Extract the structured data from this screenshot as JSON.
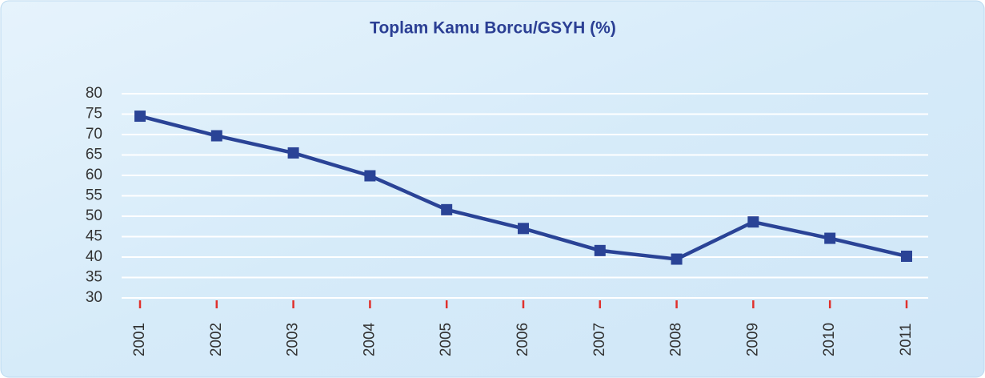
{
  "chart_data": {
    "type": "line",
    "title": "Toplam Kamu Borcu/GSYH (%)",
    "categories": [
      "2001",
      "2002",
      "2003",
      "2004",
      "2005",
      "2006",
      "2007",
      "2008",
      "2009",
      "2010",
      "2011"
    ],
    "series": [
      {
        "name": "Toplam Kamu Borcu/GSYH",
        "color": "#2a4396",
        "values": [
          74.5,
          69.7,
          65.5,
          59.9,
          51.6,
          47.0,
          41.6,
          39.5,
          48.6,
          44.6,
          40.2
        ]
      }
    ],
    "ylim": [
      30,
      80
    ],
    "yticks": [
      30,
      35,
      40,
      45,
      50,
      55,
      60,
      65,
      70,
      75,
      80
    ],
    "grid": true
  }
}
